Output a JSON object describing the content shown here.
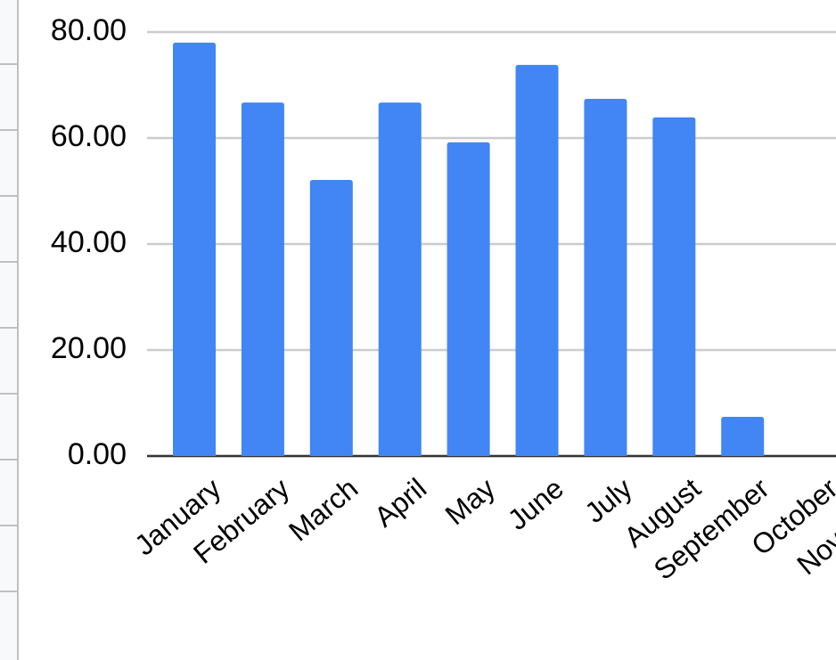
{
  "chart_data": {
    "type": "bar",
    "categories": [
      "January",
      "February",
      "March",
      "April",
      "May",
      "June",
      "July",
      "August",
      "September",
      "October",
      "November"
    ],
    "values": [
      78.0,
      66.7,
      52.1,
      66.7,
      59.2,
      73.8,
      67.4,
      63.9,
      7.4,
      null,
      null
    ],
    "color": "#4285f4",
    "ylim": [
      0,
      80
    ],
    "yticks": [
      {
        "value": 0,
        "label": "0.00"
      },
      {
        "value": 20,
        "label": "20.00"
      },
      {
        "value": 40,
        "label": "40.00"
      },
      {
        "value": 60,
        "label": "60.00"
      },
      {
        "value": 80,
        "label": "80.00"
      }
    ],
    "grid": true
  }
}
